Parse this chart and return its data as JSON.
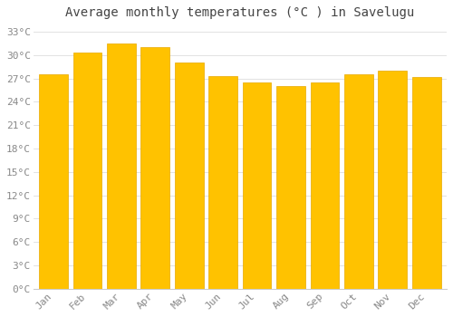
{
  "title": "Average monthly temperatures (°C ) in Savelugu",
  "months": [
    "Jan",
    "Feb",
    "Mar",
    "Apr",
    "May",
    "Jun",
    "Jul",
    "Aug",
    "Sep",
    "Oct",
    "Nov",
    "Dec"
  ],
  "values": [
    27.5,
    30.3,
    31.5,
    31.0,
    29.0,
    27.3,
    26.5,
    26.0,
    26.5,
    27.5,
    28.0,
    27.2
  ],
  "bar_color": "#FFC200",
  "bar_edge_color": "#E8A800",
  "background_color": "#FFFFFF",
  "grid_color": "#DDDDDD",
  "ylim": [
    0,
    34
  ],
  "yticks": [
    0,
    3,
    6,
    9,
    12,
    15,
    18,
    21,
    24,
    27,
    30,
    33
  ],
  "title_fontsize": 10,
  "tick_fontsize": 8,
  "title_color": "#444444",
  "tick_color": "#888888",
  "bar_width": 0.85
}
